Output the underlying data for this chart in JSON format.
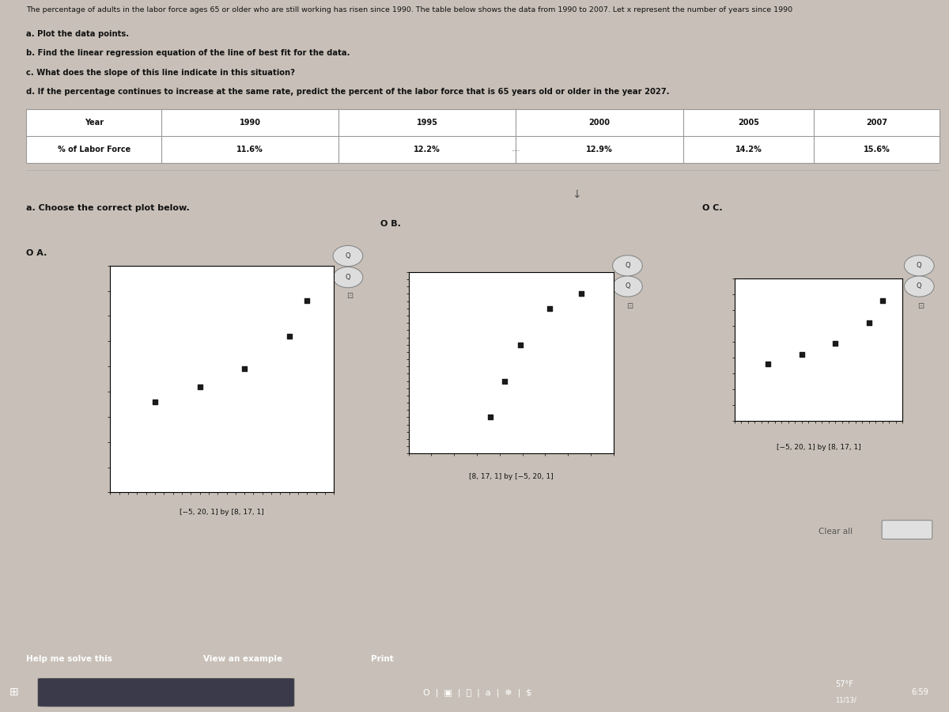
{
  "title_text": "The percentage of adults in the labor force ages 65 or older who are still working has risen since 1990. The table below shows the data from 1990 to 2007. Let x represent the number of years since 1990",
  "sub_a": "a. Plot the data points.",
  "sub_b": "b. Find the linear regression equation of the line of best fit for the data.",
  "sub_c": "c. What does the slope of this line indicate in this situation?",
  "sub_d": "d. If the percentage continues to increase at the same rate, predict the percent of the labor force that is 65 years old or older in the year 2027.",
  "table_years": [
    "Year",
    "1990",
    "1995",
    "2000",
    "2005",
    "2007"
  ],
  "table_pct": [
    "% of Labor Force",
    "11.6%",
    "12.2%",
    "12.9%",
    "14.2%",
    "15.6%"
  ],
  "choose_text": "a. Choose the correct plot below.",
  "plot_A_window": "[−5, 20, 1] by [8, 17, 1]",
  "plot_B_window": "[8, 17, 1] by [−5, 20, 1]",
  "plot_C_window": "[−5, 20, 1] by [8, 17, 1]",
  "data_x": [
    0,
    5,
    10,
    15,
    17
  ],
  "data_y": [
    11.6,
    12.2,
    12.9,
    14.2,
    15.6
  ],
  "bg_color": "#c8c0b8",
  "content_bg": "#e8e4e0",
  "white": "#ffffff",
  "text_color": "#111111",
  "table_border": "#999999",
  "taskbar_bg": "#2a2a3a",
  "taskbar_blue": "#1a8cbf",
  "bottom_bar_color": "#d44000",
  "help_text": "Help me solve this",
  "view_example_text": "View an example",
  "print_text": "Print",
  "clear_text": "Clear all",
  "cursor_text": ".....",
  "left_blue_bar": "#3050a0"
}
